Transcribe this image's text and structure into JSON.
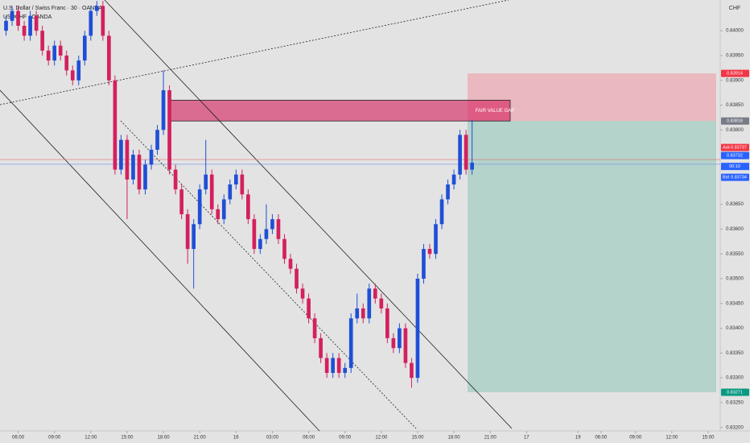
{
  "chart_data": {
    "type": "candlestick",
    "title": "U.S. Dollar / Swiss Franc · 30 · OANDA",
    "subtitle": "USDCHF · OANDA",
    "currency": "CHF",
    "up_color": "#1f4fd6",
    "down_color": "#d3205f",
    "x": [
      -2,
      -1,
      0,
      1,
      2,
      3,
      4,
      5,
      6,
      7,
      8,
      9,
      10,
      11,
      12,
      13,
      14,
      15,
      16,
      17,
      18,
      19,
      20,
      21,
      22,
      23,
      24,
      25,
      26,
      27,
      28,
      29,
      30,
      31,
      32,
      33,
      34,
      35,
      36,
      37,
      38,
      39,
      40,
      41,
      42,
      43,
      44,
      45,
      46,
      47,
      48,
      49,
      50,
      51,
      52,
      53,
      54,
      55,
      56,
      57,
      58,
      59,
      60,
      61,
      62,
      63,
      64,
      65,
      66,
      67,
      68,
      69,
      70,
      71,
      72,
      73,
      74,
      75
    ],
    "open": [
      0.84,
      0.8402,
      0.8404,
      0.8401,
      0.8399,
      0.8403,
      0.84,
      0.8396,
      0.8394,
      0.8397,
      0.8395,
      0.8392,
      0.839,
      0.8394,
      0.8399,
      0.8404,
      0.8405,
      0.8399,
      0.839,
      0.8372,
      0.8378,
      0.837,
      0.8375,
      0.8368,
      0.8373,
      0.8376,
      0.838,
      0.8388,
      0.8372,
      0.8368,
      0.8363,
      0.8356,
      0.8361,
      0.8368,
      0.8371,
      0.8364,
      0.8362,
      0.8366,
      0.8369,
      0.8371,
      0.8367,
      0.8362,
      0.8356,
      0.8358,
      0.836,
      0.8362,
      0.8358,
      0.8354,
      0.8352,
      0.8348,
      0.8346,
      0.8342,
      0.8338,
      0.8334,
      0.8331,
      0.8334,
      0.8331,
      0.8332,
      0.8342,
      0.8344,
      0.8342,
      0.8348,
      0.8346,
      0.8344,
      0.8338,
      0.8336,
      0.834,
      0.8333,
      0.833,
      0.835,
      0.8356,
      0.8355,
      0.8361,
      0.8366,
      0.8369,
      0.8371,
      0.8379,
      0.8372
    ],
    "high": [
      0.8403,
      0.8405,
      0.8405,
      0.8402,
      0.8404,
      0.8404,
      0.8401,
      0.8397,
      0.8398,
      0.8398,
      0.8396,
      0.8393,
      0.8395,
      0.84,
      0.8405,
      0.8406,
      0.8406,
      0.84,
      0.8391,
      0.8379,
      0.8379,
      0.8376,
      0.8376,
      0.8374,
      0.8377,
      0.8381,
      0.8392,
      0.8389,
      0.8373,
      0.8369,
      0.8364,
      0.8362,
      0.8369,
      0.8378,
      0.8372,
      0.8365,
      0.8367,
      0.837,
      0.8372,
      0.8372,
      0.8368,
      0.8363,
      0.8359,
      0.8365,
      0.8363,
      0.8363,
      0.8359,
      0.8355,
      0.8353,
      0.8349,
      0.8347,
      0.8343,
      0.8339,
      0.8335,
      0.8335,
      0.8335,
      0.8333,
      0.8343,
      0.8347,
      0.8345,
      0.8349,
      0.8349,
      0.8347,
      0.8345,
      0.8339,
      0.8341,
      0.8341,
      0.8334,
      0.8351,
      0.8357,
      0.8357,
      0.8362,
      0.8367,
      0.837,
      0.8372,
      0.838,
      0.838,
      0.8382
    ],
    "low": [
      0.8399,
      0.8401,
      0.84,
      0.8398,
      0.8398,
      0.8399,
      0.8395,
      0.8393,
      0.8393,
      0.8394,
      0.8391,
      0.8389,
      0.8389,
      0.8393,
      0.8398,
      0.8403,
      0.8398,
      0.8389,
      0.8371,
      0.8371,
      0.8362,
      0.8369,
      0.8367,
      0.8367,
      0.8372,
      0.8375,
      0.8379,
      0.8371,
      0.8367,
      0.8362,
      0.8353,
      0.8348,
      0.836,
      0.8367,
      0.8363,
      0.8361,
      0.8361,
      0.8365,
      0.8368,
      0.8366,
      0.8361,
      0.8355,
      0.8355,
      0.8357,
      0.8359,
      0.8357,
      0.8353,
      0.8351,
      0.8347,
      0.8345,
      0.8341,
      0.8337,
      0.8333,
      0.833,
      0.833,
      0.833,
      0.833,
      0.8331,
      0.8341,
      0.8341,
      0.8341,
      0.8345,
      0.8343,
      0.8337,
      0.8335,
      0.8335,
      0.8332,
      0.8328,
      0.8329,
      0.8349,
      0.8354,
      0.8354,
      0.836,
      0.8365,
      0.8368,
      0.837,
      0.8371,
      0.8371
    ],
    "close": [
      0.8402,
      0.8404,
      0.8401,
      0.8399,
      0.8403,
      0.84,
      0.8396,
      0.8394,
      0.8397,
      0.8395,
      0.8392,
      0.839,
      0.8394,
      0.8399,
      0.8404,
      0.8405,
      0.8399,
      0.839,
      0.8372,
      0.8378,
      0.837,
      0.8375,
      0.8368,
      0.8373,
      0.8376,
      0.838,
      0.8388,
      0.8372,
      0.8368,
      0.8363,
      0.8356,
      0.8361,
      0.8368,
      0.8371,
      0.8364,
      0.8362,
      0.8366,
      0.8369,
      0.8371,
      0.8367,
      0.8362,
      0.8356,
      0.8358,
      0.836,
      0.8362,
      0.8358,
      0.8354,
      0.8352,
      0.8348,
      0.8346,
      0.8342,
      0.8338,
      0.8334,
      0.8331,
      0.8334,
      0.8331,
      0.8332,
      0.8342,
      0.8344,
      0.8342,
      0.8348,
      0.8346,
      0.8344,
      0.8338,
      0.8336,
      0.834,
      0.8333,
      0.833,
      0.835,
      0.8356,
      0.8355,
      0.8361,
      0.8366,
      0.8369,
      0.8371,
      0.8379,
      0.8372,
      0.83734
    ],
    "xlim": [
      -3,
      116
    ],
    "xticks": [
      {
        "value": 0,
        "label": "06:00"
      },
      {
        "value": 6,
        "label": "09:00"
      },
      {
        "value": 12,
        "label": "12:00"
      },
      {
        "value": 18,
        "label": "15:00"
      },
      {
        "value": 24,
        "label": "18:00"
      },
      {
        "value": 30,
        "label": "21:00"
      },
      {
        "value": 36,
        "label": "16"
      },
      {
        "value": 42,
        "label": "03:00"
      },
      {
        "value": 48,
        "label": "06:00"
      },
      {
        "value": 54,
        "label": "09:00"
      },
      {
        "value": 60,
        "label": "12:00"
      },
      {
        "value": 66,
        "label": "15:00"
      },
      {
        "value": 72,
        "label": "18:00"
      },
      {
        "value": 78,
        "label": "21:00"
      },
      {
        "value": 84,
        "label": "17"
      },
      {
        "value": 92.5,
        "label": "19"
      },
      {
        "value": 96.3,
        "label": "06:00"
      },
      {
        "value": 102,
        "label": "09:00"
      },
      {
        "value": 108,
        "label": "12:00"
      },
      {
        "value": 114,
        "label": "15:00"
      }
    ],
    "ylim": [
      0.83193,
      0.84062
    ],
    "yticks": [
      {
        "value": 0.84,
        "label": "0.84000"
      },
      {
        "value": 0.8395,
        "label": "0.83950"
      },
      {
        "value": 0.839,
        "label": "0.83900"
      },
      {
        "value": 0.8385,
        "label": "0.83850"
      },
      {
        "value": 0.838,
        "label": "0.83800"
      },
      {
        "value": 0.8365,
        "label": "0.83650"
      },
      {
        "value": 0.836,
        "label": "0.83600"
      },
      {
        "value": 0.8355,
        "label": "0.83550"
      },
      {
        "value": 0.835,
        "label": "0.83500"
      },
      {
        "value": 0.8345,
        "label": "0.83450"
      },
      {
        "value": 0.834,
        "label": "0.83400"
      },
      {
        "value": 0.8335,
        "label": "0.83350"
      },
      {
        "value": 0.833,
        "label": "0.83300"
      },
      {
        "value": 0.8325,
        "label": "0.83250"
      },
      {
        "value": 0.832,
        "label": "0.83200"
      }
    ],
    "grid": false,
    "fair_value_gap": {
      "label": "FAIR VALUE GAP",
      "top": 0.8386,
      "bottom": 0.83818
    },
    "position": {
      "stop": {
        "value": 0.83914,
        "label": "0.83914"
      },
      "entry": {
        "value": 0.83818,
        "label": "0.83818"
      },
      "target": {
        "value": 0.83271,
        "label": "0.83271"
      }
    },
    "ask_name": "Ask",
    "ask": {
      "value": 0.83737,
      "label": "0.83737"
    },
    "last": {
      "value": 0.83732,
      "label": "0.83732"
    },
    "countdown": "00:10",
    "bid_name": "Bid",
    "bid": {
      "value": 0.83734,
      "label": "0.83734"
    }
  }
}
